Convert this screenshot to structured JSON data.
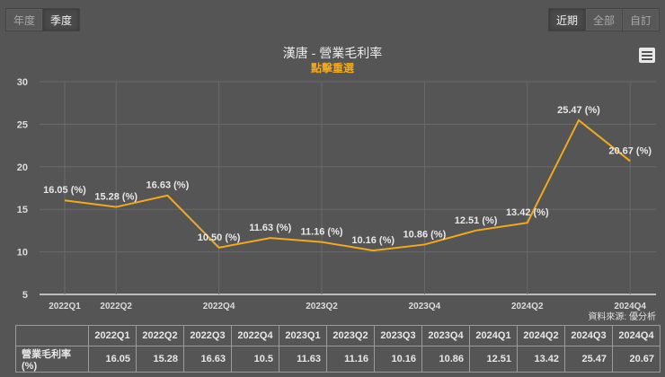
{
  "period_tabs": [
    {
      "label": "年度",
      "active": false
    },
    {
      "label": "季度",
      "active": true
    }
  ],
  "range_tabs": [
    {
      "label": "近期",
      "active": true
    },
    {
      "label": "全部",
      "active": false
    },
    {
      "label": "自訂",
      "active": false
    }
  ],
  "menu_icon": "hamburger-menu-icon",
  "chart_title": "漢唐 - 營業毛利率",
  "chart_subtitle": "點擊重選",
  "source": "資料來源: 優分析",
  "colors": {
    "background": "#555555",
    "line": "#f2a91b",
    "subtitle": "#f2a91b",
    "grid": "#6a6a6a",
    "text": "#e6e6e6"
  },
  "chart_data": {
    "type": "line",
    "title": "漢唐 - 營業毛利率",
    "subtitle": "點擊重選",
    "xlabel": "",
    "ylabel": "",
    "ylim": [
      5,
      30
    ],
    "yticks": [
      5,
      10,
      15,
      20,
      25,
      30
    ],
    "grid": true,
    "legend": false,
    "categories": [
      "2022Q1",
      "2022Q2",
      "2022Q3",
      "2022Q4",
      "2023Q1",
      "2023Q2",
      "2023Q3",
      "2023Q4",
      "2024Q1",
      "2024Q2",
      "2024Q3",
      "2024Q4"
    ],
    "xtick_labels_shown": [
      "2022Q1",
      "2022Q2",
      "2022Q4",
      "2023Q2",
      "2023Q4",
      "2024Q2",
      "2024Q4"
    ],
    "series": [
      {
        "name": "營業毛利率(%)",
        "values": [
          16.05,
          15.28,
          16.63,
          10.5,
          11.63,
          11.16,
          10.16,
          10.86,
          12.51,
          13.42,
          25.47,
          20.67
        ],
        "data_labels": [
          "16.05 (%)",
          "15.28 (%)",
          "16.63 (%)",
          "10.50 (%)",
          "11.63 (%)",
          "11.16 (%)",
          "10.16 (%)",
          "10.86 (%)",
          "12.51 (%)",
          "13.42 (%)",
          "25.47 (%)",
          "20.67 (%)"
        ]
      }
    ],
    "annotation": "資料來源: 優分析"
  },
  "table": {
    "row_header": "營業毛利率(%)",
    "columns": [
      "2022Q1",
      "2022Q2",
      "2022Q3",
      "2022Q4",
      "2023Q1",
      "2023Q2",
      "2023Q3",
      "2023Q4",
      "2024Q1",
      "2024Q2",
      "2024Q3",
      "2024Q4"
    ],
    "values": [
      "16.05",
      "15.28",
      "16.63",
      "10.5",
      "11.63",
      "11.16",
      "10.16",
      "10.86",
      "12.51",
      "13.42",
      "25.47",
      "20.67"
    ]
  }
}
